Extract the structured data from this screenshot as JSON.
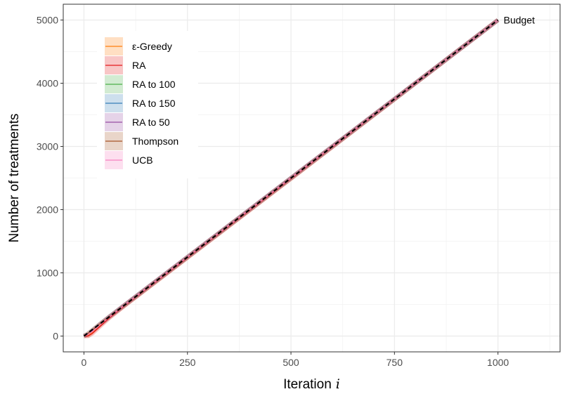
{
  "chart_data": {
    "type": "line",
    "xlabel": "Iteration",
    "xlabel_var": "i",
    "ylabel": "Number of treatments",
    "xlim": [
      -50,
      1150
    ],
    "ylim": [
      -250,
      5250
    ],
    "x_ticks": [
      0,
      250,
      500,
      750,
      1000
    ],
    "x_tick_labels": [
      "0",
      "250",
      "500",
      "750",
      "1000"
    ],
    "y_ticks": [
      0,
      1000,
      2000,
      3000,
      4000,
      5000
    ],
    "y_tick_labels": [
      "0",
      "1000",
      "2000",
      "3000",
      "4000",
      "5000"
    ],
    "grid": true,
    "legend_position": "top-left",
    "series": [
      {
        "name": "ε-Greedy",
        "color": "#ff7f0e",
        "x": [
          0,
          10,
          20,
          40,
          60,
          100,
          250,
          500,
          750,
          1000
        ],
        "y": [
          0,
          5,
          60,
          180,
          290,
          490,
          1240,
          2490,
          3745,
          5000
        ]
      },
      {
        "name": "RA",
        "color": "#e41a1c",
        "x": [
          0,
          10,
          20,
          40,
          60,
          100,
          250,
          500,
          750,
          1000
        ],
        "y": [
          0,
          0,
          40,
          160,
          280,
          490,
          1240,
          2490,
          3745,
          5000
        ]
      },
      {
        "name": "RA to 100",
        "color": "#4daf4a",
        "x": [
          0,
          10,
          20,
          40,
          60,
          100,
          250,
          500,
          750,
          1000
        ],
        "y": [
          0,
          30,
          80,
          190,
          300,
          500,
          1250,
          2500,
          3750,
          5000
        ]
      },
      {
        "name": "RA to 150",
        "color": "#377eb8",
        "x": [
          0,
          10,
          20,
          40,
          60,
          100,
          250,
          500,
          750,
          1000
        ],
        "y": [
          0,
          30,
          80,
          190,
          300,
          500,
          1250,
          2500,
          3750,
          5000
        ]
      },
      {
        "name": "RA to 50",
        "color": "#984ea3",
        "x": [
          0,
          10,
          20,
          40,
          60,
          100,
          250,
          500,
          750,
          1000
        ],
        "y": [
          0,
          30,
          85,
          195,
          300,
          500,
          1250,
          2500,
          3750,
          5000
        ]
      },
      {
        "name": "Thompson",
        "color": "#a65628",
        "x": [
          0,
          10,
          20,
          40,
          60,
          100,
          250,
          500,
          750,
          1000
        ],
        "y": [
          0,
          45,
          95,
          200,
          300,
          500,
          1250,
          2500,
          3750,
          5000
        ]
      },
      {
        "name": "UCB",
        "color": "#f781bf",
        "x": [
          0,
          10,
          20,
          40,
          60,
          100,
          250,
          500,
          750,
          1000
        ],
        "y": [
          0,
          25,
          70,
          185,
          295,
          500,
          1250,
          2500,
          3750,
          5000
        ]
      }
    ],
    "budget_line": {
      "x": [
        0,
        1000
      ],
      "y": [
        0,
        5000
      ],
      "color": "#000000",
      "style": "dashed"
    },
    "annotations": [
      {
        "text": "Budget",
        "x": 1000,
        "y": 5000
      }
    ]
  }
}
